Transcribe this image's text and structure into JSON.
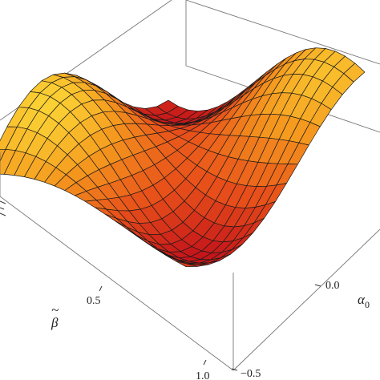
{
  "chart_data": {
    "type": "surface3d",
    "x_axis": {
      "label": "α",
      "label_subscript": "0",
      "ticks": [
        -0.5,
        0.0
      ],
      "tick_labels": [
        "−0.5",
        "0.0"
      ]
    },
    "y_axis": {
      "label": "β",
      "label_accent": "~",
      "ticks": [
        0.5,
        1.0
      ],
      "tick_labels": [
        "0.5",
        "1.0"
      ]
    },
    "z_axis": {
      "label": "",
      "ticks": [],
      "tick_labels": []
    },
    "mesh": {
      "u_lines": 16,
      "v_lines": 20
    },
    "colormap": [
      "#c4141a",
      "#e8501a",
      "#f59a1e",
      "#fde23a"
    ],
    "box": true,
    "grid": false
  }
}
